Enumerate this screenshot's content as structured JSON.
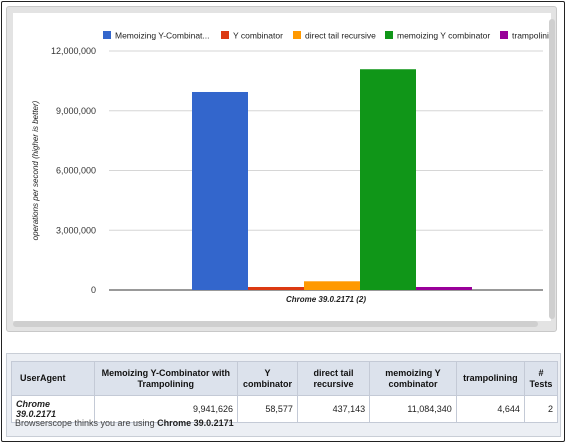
{
  "chart_data": {
    "type": "bar",
    "categories": [
      "Chrome 39.0.2171 (2)"
    ],
    "series": [
      {
        "name": "Memoizing Y-Combinator with Trampolining",
        "legend_label": "Memoizing Y-Combinat...",
        "color": "#3366cc",
        "values": [
          9941626
        ]
      },
      {
        "name": "Y combinator",
        "legend_label": "Y combinator",
        "color": "#dc3912",
        "values": [
          58577
        ]
      },
      {
        "name": "direct tail recursive",
        "legend_label": "direct tail recursive",
        "color": "#ff9900",
        "values": [
          437143
        ]
      },
      {
        "name": "memoizing Y combinator",
        "legend_label": "memoizing Y combinator",
        "color": "#109618",
        "values": [
          11084340
        ]
      },
      {
        "name": "trampolining",
        "legend_label": "trampolinin",
        "color": "#990099",
        "values": [
          4644
        ]
      }
    ],
    "ylabel": "operations per second (higher is better)",
    "xlabel": "",
    "ylim": [
      0,
      12000000
    ],
    "yticks": [
      0,
      3000000,
      6000000,
      9000000,
      12000000
    ],
    "ytick_labels": [
      "0",
      "3,000,000",
      "6,000,000",
      "9,000,000",
      "12,000,000"
    ],
    "grid": true,
    "legend_position": "top"
  },
  "table": {
    "headers": [
      "UserAgent",
      "Memoizing Y-Combinator with Trampolining",
      "Y combinator",
      "direct tail recursive",
      "memoizing Y combinator",
      "trampolining",
      "# Tests"
    ],
    "rows": [
      [
        "Chrome 39.0.2171",
        "9,941,626",
        "58,577",
        "437,143",
        "11,084,340",
        "4,644",
        "2"
      ]
    ]
  },
  "footer": {
    "prefix": "Browserscope thinks you are using ",
    "browser": "Chrome 39.0.2171"
  }
}
